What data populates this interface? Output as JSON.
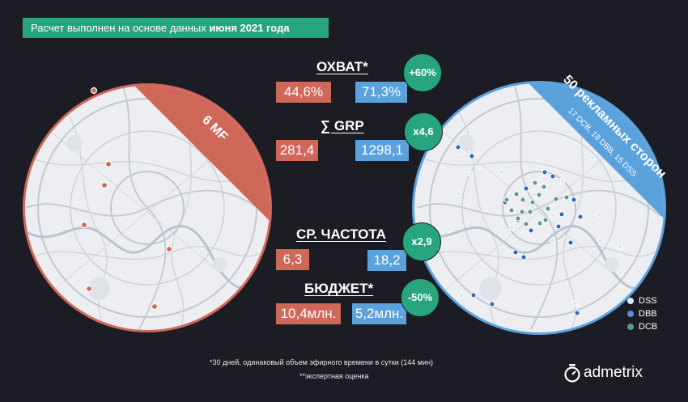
{
  "header": {
    "text_prefix": "Расчет выполнен на основе данных ",
    "text_bold": "июня 2021 года"
  },
  "left_map": {
    "ribbon_text": "6 MF",
    "ribbon_color": "#d0685a",
    "border_color": "#d0685a"
  },
  "right_map": {
    "ribbon_title": "50 рекламных сторон",
    "ribbon_subtitle": "17 DCB, 18 DBB, 15 DSS",
    "ribbon_color": "#5ba2dd",
    "border_color": "#5ba2dd"
  },
  "metrics": {
    "reach": {
      "title": "ОХВАТ*",
      "left": "44,6%",
      "right": "71,3%",
      "delta": "+60%"
    },
    "grp": {
      "title": "∑ GRP",
      "left": "281,4",
      "right": "1298,1",
      "delta": "х4,6"
    },
    "frequency": {
      "title": "СР. ЧАСТОТА",
      "left": "6,3",
      "right": "18,2",
      "delta": "х2,9"
    },
    "budget": {
      "title": "БЮДЖЕТ*",
      "left": "10,4млн.",
      "right": "5,2млн.",
      "delta": "-50%"
    }
  },
  "legend": [
    {
      "label": "DSS",
      "color": "#dbe8f4"
    },
    {
      "label": "DBB",
      "color": "#5b8fd6"
    },
    {
      "label": "DCB",
      "color": "#5c9a8a"
    }
  ],
  "footnotes": {
    "line1": "*30 дней, одинаковый объем эфирного времени в сутки (144 мин)",
    "line2": "**экспертная оценка"
  },
  "brand": {
    "name": "admetrix",
    "icon": "stopwatch-icon"
  },
  "colors": {
    "accent": "#27a57f",
    "red": "#d0685a",
    "blue": "#5ba2dd",
    "background": "#1c1d24"
  }
}
